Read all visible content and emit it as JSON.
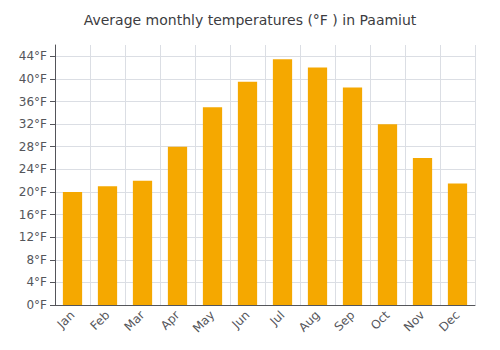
{
  "chart_data": {
    "type": "bar",
    "title": "Average monthly temperatures (°F ) in Paamiut",
    "categories": [
      "Jan",
      "Feb",
      "Mar",
      "Apr",
      "May",
      "Jun",
      "Jul",
      "Aug",
      "Sep",
      "Oct",
      "Nov",
      "Dec"
    ],
    "values": [
      20,
      21,
      22,
      28,
      35,
      39.5,
      43.5,
      42,
      38.5,
      32,
      26,
      21.5
    ],
    "color": "#F5A800",
    "ylim": [
      0,
      46
    ],
    "yticks": [
      {
        "value": 0,
        "label": "0°F"
      },
      {
        "value": 4,
        "label": "4°F"
      },
      {
        "value": 8,
        "label": "8°F"
      },
      {
        "value": 12,
        "label": "12°F"
      },
      {
        "value": 16,
        "label": "16°F"
      },
      {
        "value": 20,
        "label": "20°F"
      },
      {
        "value": 24,
        "label": "24°F"
      },
      {
        "value": 28,
        "label": "28°F"
      },
      {
        "value": 32,
        "label": "32°F"
      },
      {
        "value": 36,
        "label": "36°F"
      },
      {
        "value": 40,
        "label": "40°F"
      },
      {
        "value": 44,
        "label": "44°F"
      }
    ],
    "grid": true
  }
}
